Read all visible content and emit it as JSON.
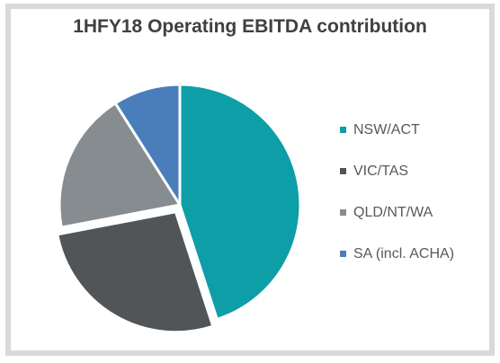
{
  "chart_data": {
    "type": "pie",
    "title": "1HFY18 Operating EBITDA contribution",
    "slices": [
      {
        "label": "NSW/ACT",
        "value": 45,
        "color": "#0e9ea8"
      },
      {
        "label": "VIC/TAS",
        "value": 27,
        "color": "#525558"
      },
      {
        "label": "QLD/NT/WA",
        "value": 19,
        "color": "#878c90"
      },
      {
        "label": "SA (incl. ACHA)",
        "value": 9,
        "color": "#4a7ebb"
      }
    ],
    "legend_position": "right"
  }
}
